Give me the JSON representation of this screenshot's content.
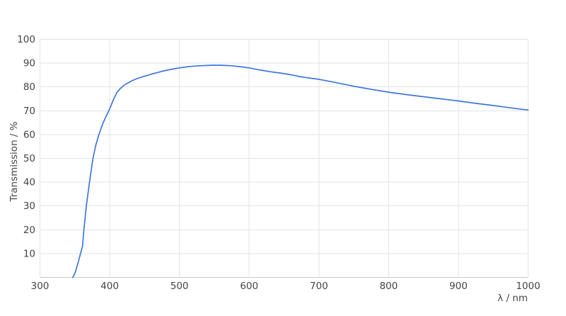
{
  "chart_data": {
    "type": "line",
    "title": "",
    "xlabel": "λ / nm",
    "ylabel": "Transmission / %",
    "xlim": [
      300,
      1000
    ],
    "ylim": [
      0,
      100
    ],
    "x_ticks": [
      300,
      400,
      500,
      600,
      700,
      800,
      900,
      1000
    ],
    "y_ticks": [
      10,
      20,
      30,
      40,
      50,
      60,
      70,
      80,
      90,
      100
    ],
    "grid": true,
    "legend_position": "none",
    "colors": {
      "line": "#3d76dd",
      "grid": "#e3e3e3",
      "axis": "#c9c9c9",
      "tick_text": "#444444"
    },
    "series": [
      {
        "name": "Transmission",
        "points": [
          [
            347,
            0
          ],
          [
            349,
            1
          ],
          [
            351,
            2.5
          ],
          [
            353,
            4.5
          ],
          [
            355,
            6.5
          ],
          [
            357,
            8.8
          ],
          [
            359,
            11
          ],
          [
            361,
            13
          ],
          [
            363,
            20
          ],
          [
            366.5,
            30
          ],
          [
            371,
            40
          ],
          [
            376,
            50
          ],
          [
            380,
            55.5
          ],
          [
            384.5,
            60
          ],
          [
            390,
            64.5
          ],
          [
            395,
            67.8
          ],
          [
            400,
            70.8
          ],
          [
            405,
            74.5
          ],
          [
            410,
            77.5
          ],
          [
            415,
            79.3
          ],
          [
            420,
            80.6
          ],
          [
            425,
            81.5
          ],
          [
            430,
            82.3
          ],
          [
            435,
            83
          ],
          [
            440,
            83.6
          ],
          [
            450,
            84.5
          ],
          [
            460,
            85.4
          ],
          [
            470,
            86.2
          ],
          [
            480,
            86.9
          ],
          [
            490,
            87.5
          ],
          [
            500,
            88
          ],
          [
            515,
            88.6
          ],
          [
            530,
            88.9
          ],
          [
            545,
            89.1
          ],
          [
            560,
            89.1
          ],
          [
            575,
            88.9
          ],
          [
            590,
            88.4
          ],
          [
            600,
            88
          ],
          [
            610,
            87.4
          ],
          [
            620,
            86.9
          ],
          [
            630,
            86.4
          ],
          [
            640,
            86
          ],
          [
            650,
            85.6
          ],
          [
            660,
            85.1
          ],
          [
            670,
            84.5
          ],
          [
            680,
            84
          ],
          [
            690,
            83.6
          ],
          [
            700,
            83.2
          ],
          [
            725,
            81.8
          ],
          [
            750,
            80.3
          ],
          [
            775,
            79
          ],
          [
            800,
            77.8
          ],
          [
            825,
            76.8
          ],
          [
            850,
            75.9
          ],
          [
            875,
            75
          ],
          [
            900,
            74.1
          ],
          [
            925,
            73.1
          ],
          [
            950,
            72.2
          ],
          [
            975,
            71.2
          ],
          [
            1000,
            70.3
          ]
        ]
      }
    ]
  }
}
